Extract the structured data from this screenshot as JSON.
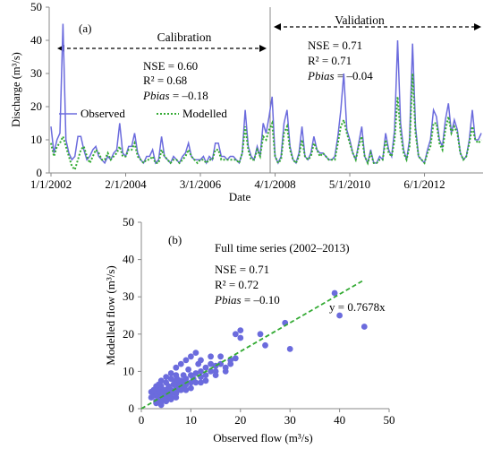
{
  "chart_data": [
    {
      "type": "line",
      "panel_label": "(a)",
      "xlabel": "Date",
      "ylabel": "Discharge (m³/s)",
      "ylim": [
        0,
        50
      ],
      "y_ticks": [
        "0",
        "10",
        "20",
        "30",
        "40",
        "50"
      ],
      "x_tick_labels": [
        "1/1/2002",
        "2/1/2004",
        "3/1/2006",
        "4/1/2008",
        "5/1/2010",
        "6/1/2012"
      ],
      "x_tick_index": [
        0,
        25,
        50,
        75,
        100,
        125
      ],
      "grid": false,
      "legend_position": "middle-left",
      "periods": {
        "calibration": {
          "label": "Calibration",
          "nse": "NSE   = 0.60",
          "r2": "R²     = 0.68",
          "pbias_label": "Pbias",
          "pbias_value": " = –0.18"
        },
        "validation": {
          "label": "Validation",
          "nse": "NSE   = 0.71",
          "r2": "R²     = 0.71",
          "pbias_label": "Pbias",
          "pbias_value": " = –0.04"
        }
      },
      "series": [
        {
          "name": "Observed",
          "color": "#6b6bdd",
          "style": "solid",
          "values": [
            14,
            6,
            10,
            12,
            45,
            10,
            6,
            4,
            5,
            11,
            11,
            7,
            4,
            5,
            7,
            8,
            5,
            4,
            3,
            5,
            4,
            6,
            7,
            15,
            6,
            5,
            8,
            8,
            12,
            6,
            4,
            3,
            5,
            5,
            7,
            3,
            4,
            11,
            5,
            4,
            3,
            5,
            4,
            3,
            5,
            6,
            9,
            5,
            4,
            4,
            4,
            5,
            3,
            5,
            4,
            9,
            9,
            5,
            5,
            4,
            5,
            5,
            4,
            3,
            6,
            19,
            8,
            5,
            4,
            8,
            5,
            15,
            12,
            17,
            23,
            5,
            3,
            5,
            15,
            19,
            8,
            4,
            3,
            6,
            14,
            5,
            4,
            6,
            11,
            7,
            6,
            6,
            5,
            4,
            4,
            5,
            11,
            19,
            30,
            13,
            10,
            6,
            4,
            9,
            14,
            5,
            3,
            7,
            3,
            3,
            5,
            4,
            12,
            7,
            5,
            13,
            40,
            15,
            7,
            4,
            10,
            39,
            14,
            5,
            4,
            3,
            7,
            10,
            19,
            17,
            10,
            8,
            16,
            21,
            12,
            16,
            13,
            6,
            4,
            5,
            10,
            19,
            10,
            10,
            12
          ]
        },
        {
          "name": "Modelled",
          "color": "#33aa33",
          "style": "dotted",
          "values": [
            9,
            5,
            8,
            9,
            11,
            8,
            5,
            2,
            1,
            4,
            7,
            8,
            5,
            3,
            5,
            7,
            6,
            4,
            4,
            6,
            4,
            5,
            6,
            8,
            5,
            5,
            7,
            7,
            9,
            5,
            4,
            3,
            4,
            4,
            5,
            3,
            3,
            7,
            5,
            4,
            3,
            4,
            4,
            3,
            4,
            5,
            7,
            5,
            4,
            3,
            4,
            4,
            3,
            4,
            4,
            7,
            7,
            4,
            4,
            4,
            4,
            4,
            4,
            3,
            6,
            14,
            7,
            4,
            4,
            7,
            5,
            11,
            10,
            13,
            15,
            5,
            3,
            4,
            12,
            14,
            7,
            4,
            3,
            5,
            10,
            5,
            4,
            5,
            9,
            7,
            5,
            6,
            5,
            4,
            4,
            4,
            9,
            14,
            16,
            12,
            9,
            6,
            4,
            8,
            11,
            5,
            3,
            6,
            3,
            3,
            4,
            4,
            10,
            6,
            5,
            10,
            23,
            12,
            6,
            4,
            8,
            30,
            12,
            5,
            4,
            3,
            6,
            8,
            15,
            15,
            9,
            7,
            13,
            17,
            12,
            14,
            12,
            6,
            4,
            5,
            9,
            14,
            10,
            9,
            10
          ]
        }
      ]
    },
    {
      "type": "scatter",
      "panel_label": "(b)",
      "title": "Full time series (2002–2013)",
      "xlabel": "Observed flow (m³/s)",
      "ylabel": "Modelled flow (m³/s)",
      "xlim": [
        0,
        50
      ],
      "ylim": [
        0,
        50
      ],
      "ticks": [
        "0",
        "10",
        "20",
        "30",
        "40",
        "50"
      ],
      "stats": {
        "nse": "NSE   = 0.71",
        "r2": "R²     = 0.72",
        "pbias_label": "Pbias",
        "pbias_value": " = –0.10"
      },
      "trendline": {
        "equation": "y = 0.7678x",
        "slope": 0.7678,
        "x_range": [
          0,
          45
        ],
        "color": "#33aa33",
        "style": "dashed"
      },
      "point_color": "#6b6bdd",
      "points": [
        [
          2,
          3
        ],
        [
          2.5,
          3.5
        ],
        [
          3,
          2
        ],
        [
          3,
          4
        ],
        [
          3.5,
          3
        ],
        [
          3.5,
          5
        ],
        [
          4,
          2
        ],
        [
          4,
          3.5
        ],
        [
          4,
          6
        ],
        [
          4.5,
          4
        ],
        [
          4.5,
          2.5
        ],
        [
          5,
          3
        ],
        [
          5,
          5
        ],
        [
          5,
          7
        ],
        [
          5.5,
          4
        ],
        [
          5.5,
          6
        ],
        [
          6,
          3
        ],
        [
          6,
          5
        ],
        [
          6,
          8
        ],
        [
          6.5,
          4.5
        ],
        [
          6.5,
          6.5
        ],
        [
          7,
          4
        ],
        [
          7,
          6
        ],
        [
          7,
          9
        ],
        [
          7.5,
          5
        ],
        [
          7.5,
          7
        ],
        [
          8,
          5
        ],
        [
          8,
          7.5
        ],
        [
          8.5,
          6
        ],
        [
          8.5,
          9
        ],
        [
          9,
          6.5
        ],
        [
          9,
          8
        ],
        [
          10,
          7
        ],
        [
          10,
          9
        ],
        [
          10.5,
          8
        ],
        [
          11,
          7
        ],
        [
          11,
          9.5
        ],
        [
          12,
          8.5
        ],
        [
          12,
          10
        ],
        [
          13,
          9
        ],
        [
          13,
          11
        ],
        [
          14,
          10
        ],
        [
          14,
          12
        ],
        [
          15,
          10
        ],
        [
          15,
          11.5
        ],
        [
          16,
          12
        ],
        [
          17,
          11
        ],
        [
          18,
          13
        ],
        [
          19,
          13.5
        ],
        [
          2,
          4.5
        ],
        [
          3,
          6
        ],
        [
          4,
          7.5
        ],
        [
          5,
          8.5
        ],
        [
          6,
          9.5
        ],
        [
          7,
          11
        ],
        [
          8,
          12
        ],
        [
          9,
          13
        ],
        [
          10,
          14
        ],
        [
          11,
          15
        ],
        [
          12,
          13
        ],
        [
          14,
          14
        ],
        [
          16,
          14
        ],
        [
          18,
          12
        ],
        [
          19,
          20
        ],
        [
          20,
          21
        ],
        [
          20,
          19
        ],
        [
          24,
          20
        ],
        [
          25,
          17
        ],
        [
          29,
          23
        ],
        [
          30,
          16
        ],
        [
          39,
          31
        ],
        [
          40,
          25
        ],
        [
          45,
          22
        ],
        [
          3,
          1.5
        ],
        [
          4,
          1
        ],
        [
          5,
          2
        ],
        [
          6,
          2.5
        ],
        [
          7,
          3
        ],
        [
          9,
          5
        ],
        [
          10,
          5.5
        ],
        [
          12,
          7
        ],
        [
          13,
          7.5
        ],
        [
          15,
          9
        ],
        [
          17,
          10
        ],
        [
          4.5,
          5
        ],
        [
          5.5,
          5.5
        ],
        [
          6,
          4
        ],
        [
          7,
          5
        ],
        [
          8,
          6
        ],
        [
          3.2,
          3.8
        ],
        [
          3.8,
          4.4
        ],
        [
          4.2,
          3.2
        ],
        [
          6.8,
          7.2
        ],
        [
          7.2,
          8
        ],
        [
          8.8,
          7
        ],
        [
          9.5,
          10.5
        ],
        [
          11.5,
          12
        ],
        [
          2.5,
          5
        ],
        [
          3.5,
          6.5
        ]
      ]
    }
  ]
}
